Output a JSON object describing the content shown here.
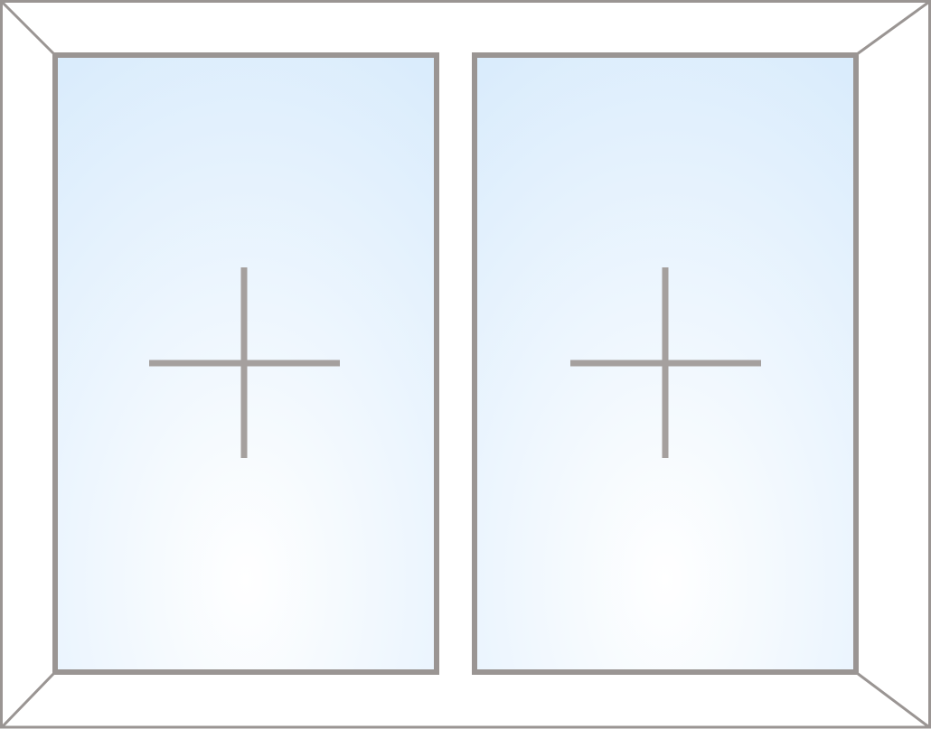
{
  "window": {
    "pane_count": 2,
    "panes": [
      {
        "marker": "plus-icon"
      },
      {
        "marker": "plus-icon"
      }
    ]
  },
  "colors": {
    "background": "#ffffff",
    "frame_stroke": "#9a9593",
    "glass_top": "#d6eafc",
    "glass_bottom": "#ffffff",
    "marker": "#a5a09e"
  }
}
